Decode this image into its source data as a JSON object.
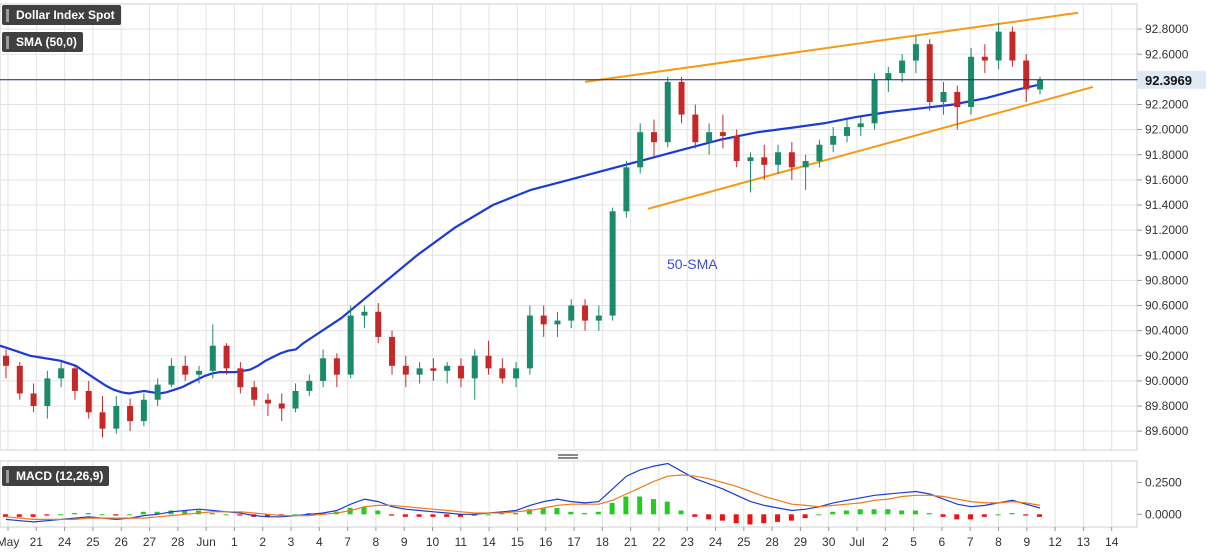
{
  "chart_data": {
    "type": "candlestick",
    "instrument": "Dollar Index Spot",
    "indicator_label": "SMA (50,0)",
    "macd_label": "MACD (12,26,9)",
    "sma_annotation": "50-SMA",
    "last_price": "92.3969",
    "y_ticks": [
      "92.8000",
      "92.6000",
      "92.4000",
      "92.2000",
      "92.0000",
      "91.8000",
      "91.6000",
      "91.4000",
      "91.2000",
      "91.0000",
      "90.8000",
      "90.6000",
      "90.4000",
      "90.2000",
      "90.0000",
      "89.8000",
      "89.6000"
    ],
    "ylim": [
      89.45,
      93.0
    ],
    "macd_ticks": [
      "0.2500",
      "0.0000"
    ],
    "macd_ylim": [
      -0.1,
      0.42
    ],
    "x_labels": [
      "May",
      "21",
      "24",
      "25",
      "26",
      "27",
      "28",
      "Jun",
      "1",
      "2",
      "3",
      "4",
      "7",
      "8",
      "9",
      "10",
      "11",
      "14",
      "15",
      "16",
      "17",
      "18",
      "21",
      "22",
      "23",
      "24",
      "25",
      "28",
      "29",
      "30",
      "Jul",
      "2",
      "5",
      "6",
      "7",
      "8",
      "9",
      "12",
      "13",
      "14"
    ],
    "ohlc": [
      [
        90.2,
        90.25,
        90.02,
        90.12
      ],
      [
        90.12,
        90.15,
        89.85,
        89.9
      ],
      [
        89.9,
        89.98,
        89.75,
        89.8
      ],
      [
        89.8,
        90.08,
        89.7,
        90.02
      ],
      [
        90.02,
        90.15,
        89.95,
        90.1
      ],
      [
        90.1,
        90.12,
        89.85,
        89.92
      ],
      [
        89.92,
        90.0,
        89.7,
        89.75
      ],
      [
        89.75,
        89.88,
        89.55,
        89.62
      ],
      [
        89.62,
        89.88,
        89.58,
        89.8
      ],
      [
        89.8,
        89.86,
        89.6,
        89.68
      ],
      [
        89.68,
        89.9,
        89.64,
        89.85
      ],
      [
        89.85,
        90.02,
        89.8,
        89.97
      ],
      [
        89.97,
        90.18,
        89.95,
        90.12
      ],
      [
        90.12,
        90.2,
        90.0,
        90.05
      ],
      [
        90.05,
        90.12,
        89.98,
        90.08
      ],
      [
        90.08,
        90.45,
        90.02,
        90.28
      ],
      [
        90.28,
        90.3,
        90.05,
        90.1
      ],
      [
        90.1,
        90.15,
        89.9,
        89.95
      ],
      [
        89.95,
        90.0,
        89.8,
        89.85
      ],
      [
        89.85,
        89.9,
        89.72,
        89.82
      ],
      [
        89.82,
        89.9,
        89.68,
        89.78
      ],
      [
        89.78,
        89.98,
        89.75,
        89.92
      ],
      [
        89.92,
        90.05,
        89.88,
        90.0
      ],
      [
        90.0,
        90.25,
        89.95,
        90.18
      ],
      [
        90.18,
        90.22,
        89.95,
        90.05
      ],
      [
        90.05,
        90.6,
        90.02,
        90.52
      ],
      [
        90.52,
        90.6,
        90.42,
        90.55
      ],
      [
        90.55,
        90.62,
        90.3,
        90.35
      ],
      [
        90.35,
        90.4,
        90.05,
        90.12
      ],
      [
        90.12,
        90.2,
        89.95,
        90.05
      ],
      [
        90.05,
        90.15,
        89.98,
        90.1
      ],
      [
        90.1,
        90.18,
        90.0,
        90.08
      ],
      [
        90.08,
        90.15,
        89.98,
        90.12
      ],
      [
        90.12,
        90.18,
        89.95,
        90.02
      ],
      [
        90.02,
        90.25,
        89.85,
        90.2
      ],
      [
        90.2,
        90.32,
        90.05,
        90.1
      ],
      [
        90.1,
        90.18,
        89.98,
        90.02
      ],
      [
        90.02,
        90.15,
        89.95,
        90.1
      ],
      [
        90.1,
        90.6,
        90.05,
        90.52
      ],
      [
        90.52,
        90.6,
        90.35,
        90.45
      ],
      [
        90.45,
        90.55,
        90.35,
        90.48
      ],
      [
        90.48,
        90.65,
        90.42,
        90.6
      ],
      [
        90.6,
        90.65,
        90.4,
        90.48
      ],
      [
        90.48,
        90.6,
        90.4,
        90.52
      ],
      [
        90.52,
        91.38,
        90.48,
        91.35
      ],
      [
        91.35,
        91.75,
        91.3,
        91.7
      ],
      [
        91.7,
        92.05,
        91.65,
        91.98
      ],
      [
        91.98,
        92.08,
        91.78,
        91.9
      ],
      [
        91.9,
        92.42,
        91.86,
        92.38
      ],
      [
        92.38,
        92.42,
        92.05,
        92.12
      ],
      [
        92.12,
        92.2,
        91.85,
        91.9
      ],
      [
        91.9,
        92.05,
        91.8,
        91.98
      ],
      [
        91.98,
        92.12,
        91.85,
        91.95
      ],
      [
        91.95,
        92.0,
        91.7,
        91.75
      ],
      [
        91.75,
        91.82,
        91.5,
        91.78
      ],
      [
        91.78,
        91.88,
        91.6,
        91.72
      ],
      [
        91.72,
        91.88,
        91.65,
        91.82
      ],
      [
        91.82,
        91.9,
        91.6,
        91.7
      ],
      [
        91.7,
        91.8,
        91.52,
        91.75
      ],
      [
        91.75,
        91.92,
        91.7,
        91.88
      ],
      [
        91.88,
        92.02,
        91.82,
        91.95
      ],
      [
        91.95,
        92.08,
        91.9,
        92.02
      ],
      [
        92.02,
        92.1,
        91.95,
        92.05
      ],
      [
        92.05,
        92.45,
        92.0,
        92.4
      ],
      [
        92.4,
        92.5,
        92.3,
        92.45
      ],
      [
        92.45,
        92.6,
        92.38,
        92.55
      ],
      [
        92.55,
        92.75,
        92.45,
        92.68
      ],
      [
        92.68,
        92.72,
        92.15,
        92.22
      ],
      [
        92.22,
        92.38,
        92.12,
        92.3
      ],
      [
        92.3,
        92.35,
        92.0,
        92.18
      ],
      [
        92.18,
        92.65,
        92.12,
        92.58
      ],
      [
        92.58,
        92.68,
        92.45,
        92.55
      ],
      [
        92.55,
        92.85,
        92.48,
        92.78
      ],
      [
        92.78,
        92.82,
        92.5,
        92.55
      ],
      [
        92.55,
        92.6,
        92.22,
        92.32
      ],
      [
        92.32,
        92.42,
        92.28,
        92.4
      ]
    ],
    "sma_50": [
      90.28,
      90.26,
      90.24,
      90.22,
      90.2,
      90.19,
      90.18,
      90.17,
      90.16,
      90.14,
      90.12,
      90.08,
      90.04,
      90.0,
      89.96,
      89.93,
      89.91,
      89.9,
      89.91,
      89.92,
      89.91,
      89.9,
      89.91,
      89.93,
      89.95,
      89.98,
      90.01,
      90.04,
      90.06,
      90.07,
      90.07,
      90.07,
      90.08,
      90.09,
      90.12,
      90.16,
      90.19,
      90.22,
      90.24,
      90.25,
      90.3,
      90.5,
      90.75,
      91.0,
      91.22,
      91.4,
      91.52,
      91.6,
      91.68,
      91.76,
      91.84,
      91.92,
      91.98,
      92.02,
      92.05,
      92.1,
      92.14,
      92.17,
      92.2,
      92.25,
      92.32,
      92.36
    ],
    "sma_x": [
      0,
      7,
      14,
      21,
      28,
      35,
      42,
      49,
      56,
      63,
      70,
      77,
      84,
      91,
      98,
      105,
      112,
      119,
      126,
      133,
      140,
      147,
      154,
      161,
      168,
      175,
      182,
      189,
      196,
      203,
      210,
      217,
      224,
      231,
      238,
      245,
      252,
      259,
      266,
      273,
      280,
      315,
      350,
      385,
      420,
      455,
      490,
      525,
      560,
      595,
      630,
      665,
      700,
      735,
      760,
      790,
      820,
      850,
      880,
      910,
      940,
      960
    ],
    "resistance_line": [
      [
        91.3,
        92.38
      ],
      [
        92.98,
        92.93
      ]
    ],
    "support_line": [
      [
        91.66,
        91.37
      ],
      [
        92.99,
        92.34
      ]
    ],
    "macd_line": [
      -0.04,
      -0.05,
      -0.06,
      -0.05,
      -0.04,
      -0.03,
      -0.02,
      -0.03,
      -0.04,
      -0.03,
      -0.01,
      0.0,
      0.02,
      0.03,
      0.04,
      0.03,
      0.02,
      0.01,
      -0.01,
      -0.02,
      -0.02,
      -0.01,
      0.0,
      0.01,
      0.03,
      0.08,
      0.12,
      0.1,
      0.06,
      0.04,
      0.03,
      0.02,
      0.01,
      0.0,
      0.0,
      0.01,
      0.02,
      0.03,
      0.07,
      0.1,
      0.12,
      0.1,
      0.09,
      0.1,
      0.2,
      0.3,
      0.35,
      0.38,
      0.4,
      0.34,
      0.28,
      0.24,
      0.2,
      0.15,
      0.1,
      0.07,
      0.05,
      0.03,
      0.04,
      0.06,
      0.09,
      0.11,
      0.13,
      0.15,
      0.16,
      0.17,
      0.18,
      0.16,
      0.12,
      0.08,
      0.06,
      0.07,
      0.09,
      0.11,
      0.08,
      0.05
    ],
    "signal_line": [
      -0.02,
      -0.03,
      -0.04,
      -0.04,
      -0.04,
      -0.04,
      -0.03,
      -0.03,
      -0.03,
      -0.03,
      -0.03,
      -0.02,
      -0.01,
      0.0,
      0.01,
      0.02,
      0.02,
      0.02,
      0.01,
      0.0,
      -0.01,
      -0.01,
      -0.01,
      0.0,
      0.01,
      0.03,
      0.06,
      0.07,
      0.07,
      0.06,
      0.05,
      0.04,
      0.03,
      0.02,
      0.01,
      0.01,
      0.01,
      0.02,
      0.03,
      0.05,
      0.07,
      0.08,
      0.08,
      0.08,
      0.11,
      0.16,
      0.21,
      0.26,
      0.3,
      0.31,
      0.3,
      0.28,
      0.25,
      0.22,
      0.18,
      0.14,
      0.11,
      0.08,
      0.07,
      0.06,
      0.07,
      0.08,
      0.09,
      0.11,
      0.12,
      0.14,
      0.15,
      0.15,
      0.14,
      0.12,
      0.1,
      0.09,
      0.09,
      0.1,
      0.09,
      0.07
    ],
    "colors": {
      "up": "#1b8a6b",
      "down": "#c62828",
      "sma": "#1a3cd4",
      "trend": "#f59a12",
      "macd": "#1a3cd4",
      "signal": "#f07a1a",
      "hist_up": "#22cc22",
      "hist_down": "#ee1111",
      "price_box": "#dfe9f5",
      "grid": "#e3e3e3"
    }
  }
}
